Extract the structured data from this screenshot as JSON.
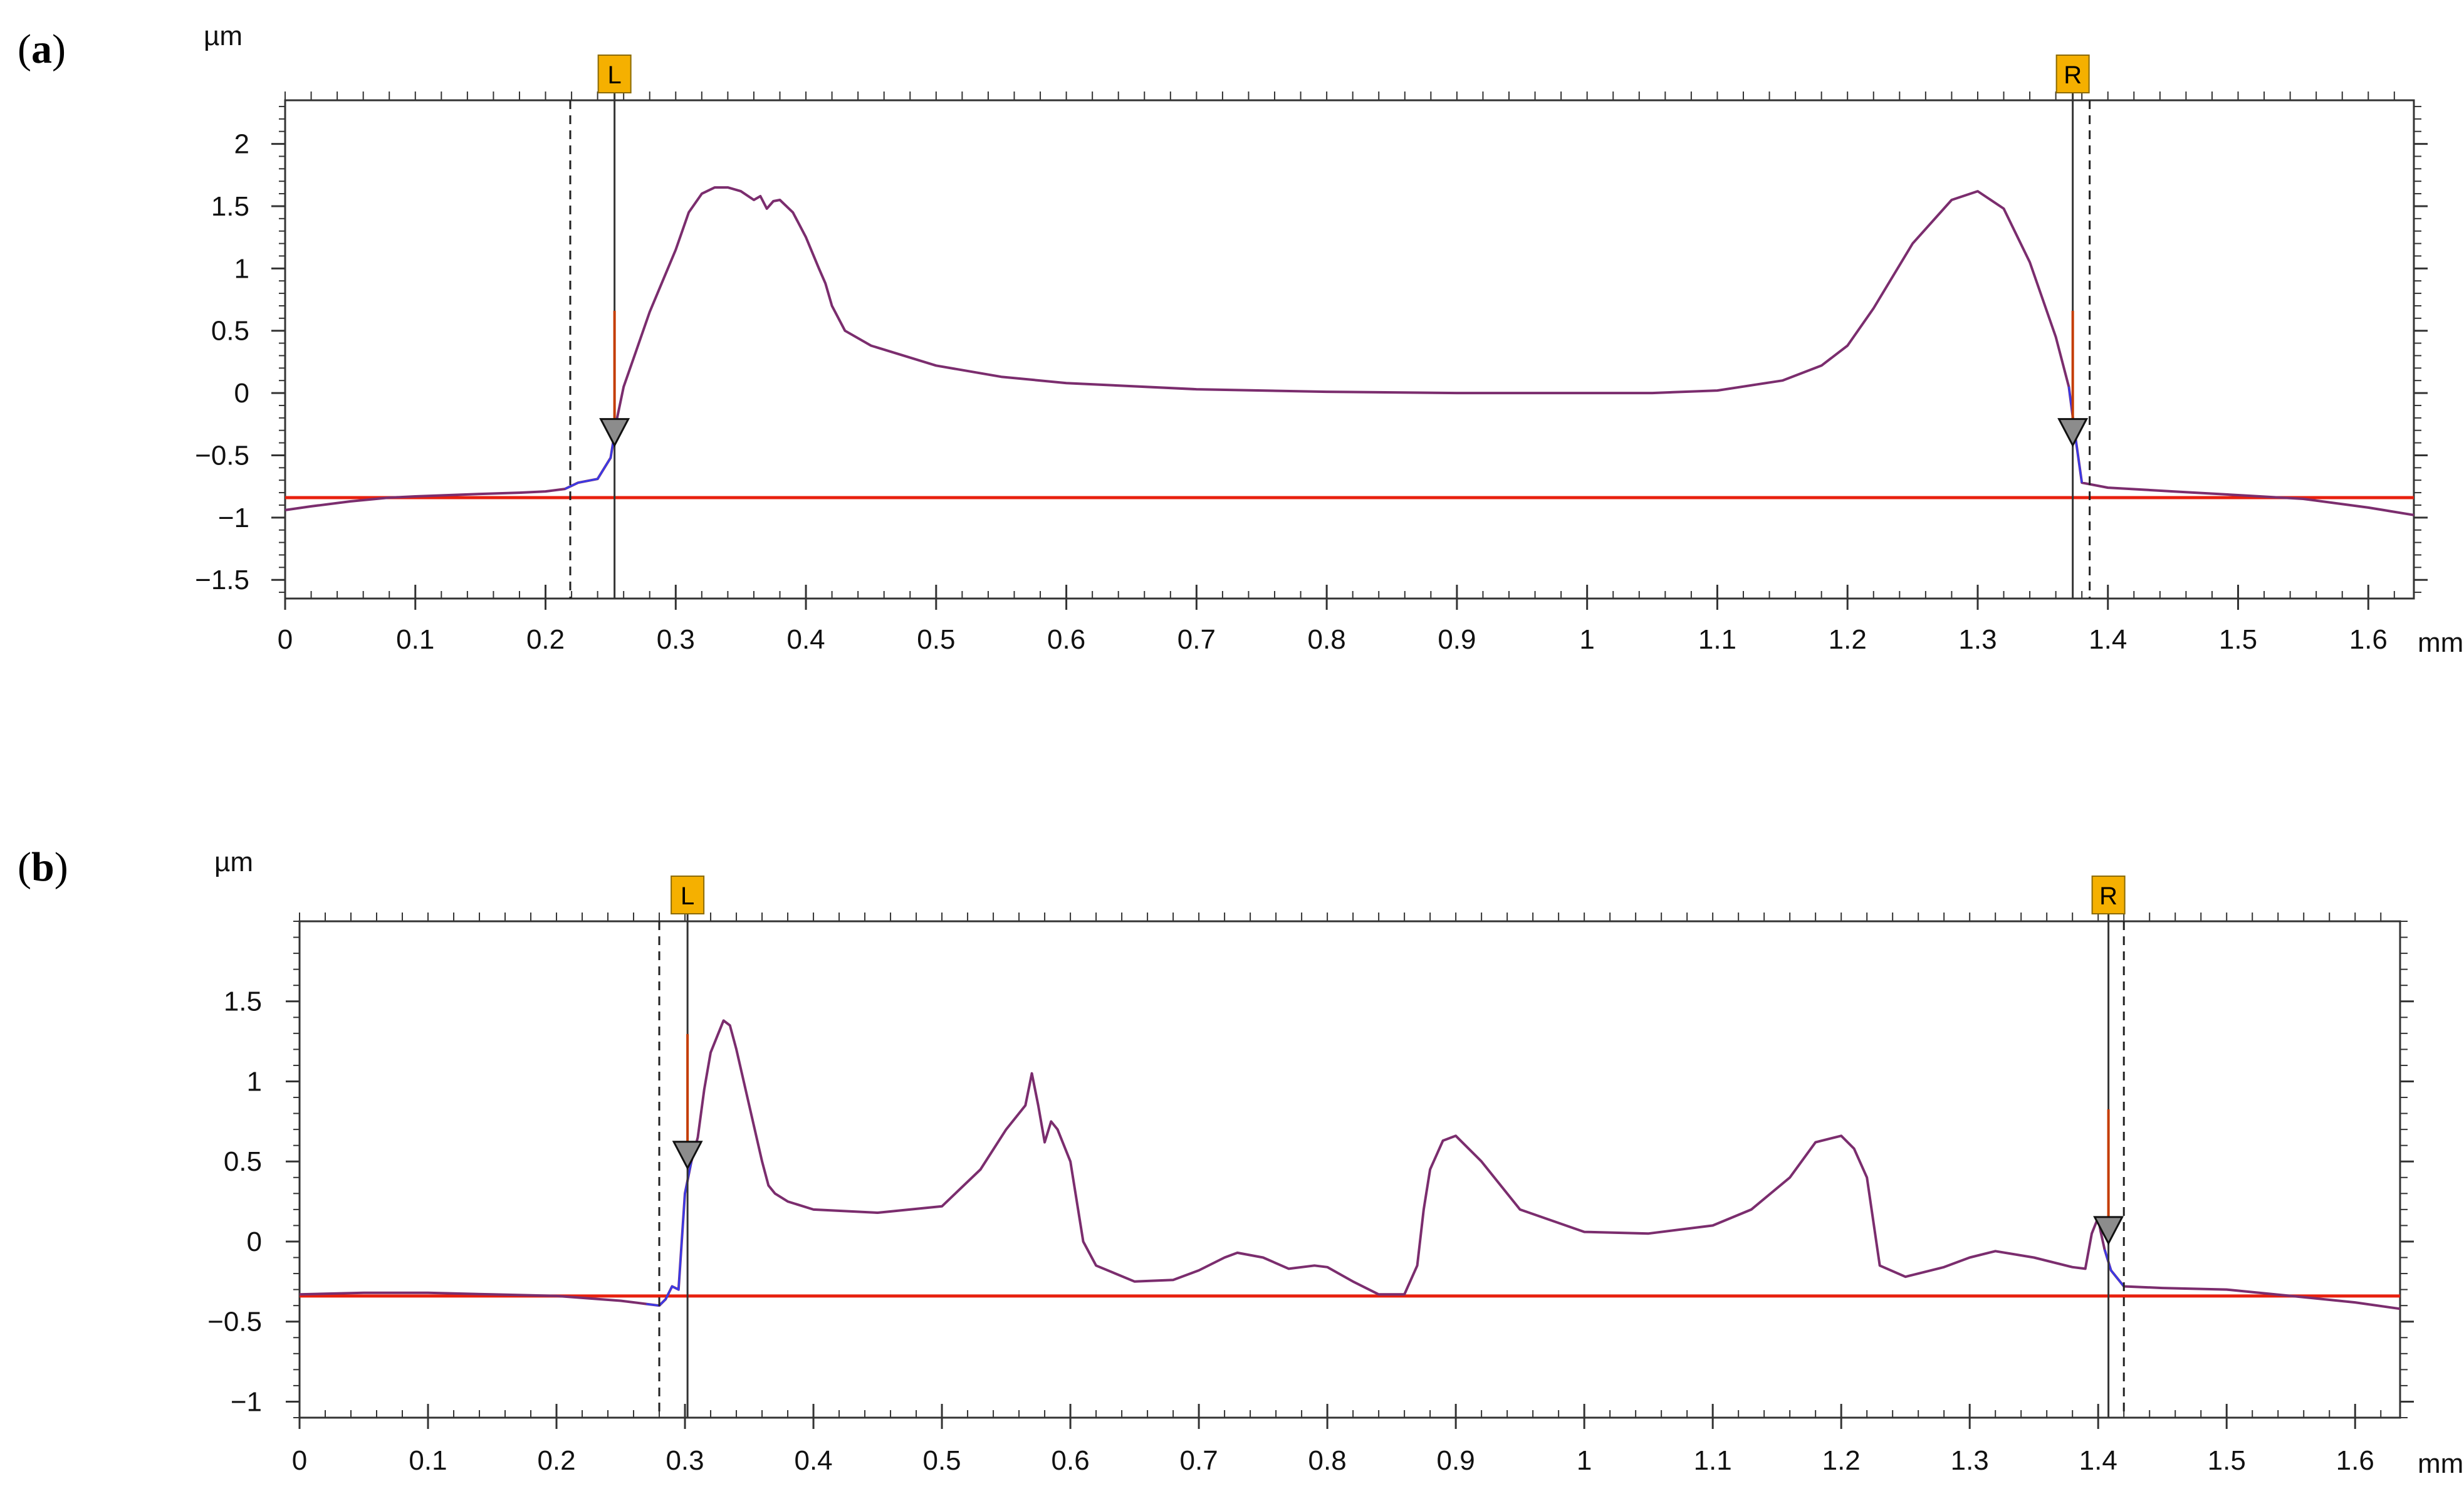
{
  "figure": {
    "panels": [
      {
        "letter": "a",
        "open": "(",
        "close": ")"
      },
      {
        "letter": "b",
        "open": "(",
        "close": ")"
      }
    ]
  },
  "chart_data": [
    {
      "type": "line",
      "panel": "a",
      "y_unit": "µm",
      "x_unit": "mm",
      "xlim": [
        0,
        1.635
      ],
      "ylim": [
        -1.65,
        2.35
      ],
      "x_ticks": [
        0,
        0.1,
        0.2,
        0.3,
        0.4,
        0.5,
        0.6,
        0.7,
        0.8,
        0.9,
        1,
        1.1,
        1.2,
        1.3,
        1.4,
        1.5,
        1.6
      ],
      "x_tick_labels": [
        "0",
        "0.1",
        "0.2",
        "0.3",
        "0.4",
        "0.5",
        "0.6",
        "0.7",
        "0.8",
        "0.9",
        "1",
        "1.1",
        "1.2",
        "1.3",
        "1.4",
        "1.5",
        "1.6"
      ],
      "y_ticks": [
        -1.5,
        -1,
        -0.5,
        0,
        0.5,
        1,
        1.5,
        2
      ],
      "y_tick_labels": [
        "−1.5",
        "−1",
        "−0.5",
        "0",
        "0.5",
        "1",
        "1.5",
        "2"
      ],
      "grid": false,
      "reference_line": {
        "y": -0.84,
        "color": "#e8200e"
      },
      "markers": [
        {
          "label": "L",
          "x": 0.253,
          "dashed_x": 0.219,
          "triangle_y": -0.38
        },
        {
          "label": "R",
          "x": 1.373,
          "dashed_x": 1.386,
          "triangle_y": -0.38
        }
      ],
      "colors": {
        "profile": "#7b2d6e",
        "edge_profile": "#3a3ae8",
        "reference": "#e8200e",
        "marker_box": "#f5b000",
        "cursor_red": "#c43c00"
      },
      "series": [
        {
          "role": "profile",
          "x": [
            0,
            0.02,
            0.05,
            0.08,
            0.1,
            0.15,
            0.18,
            0.2,
            0.215,
            0.225,
            0.24,
            0.25,
            0.255,
            0.26,
            0.27,
            0.28,
            0.29,
            0.3,
            0.31,
            0.32,
            0.33,
            0.34,
            0.35,
            0.36,
            0.365,
            0.37,
            0.375,
            0.38,
            0.39,
            0.4,
            0.41,
            0.415,
            0.42,
            0.43,
            0.45,
            0.5,
            0.55,
            0.6,
            0.7,
            0.8,
            0.9,
            1,
            1.05,
            1.1,
            1.15,
            1.18,
            1.2,
            1.22,
            1.25,
            1.28,
            1.3,
            1.32,
            1.34,
            1.36,
            1.37,
            1.375,
            1.38,
            1.4,
            1.45,
            1.5,
            1.55,
            1.6,
            1.635
          ],
          "y": [
            -0.94,
            -0.91,
            -0.87,
            -0.84,
            -0.83,
            -0.81,
            -0.8,
            -0.79,
            -0.77,
            -0.72,
            -0.69,
            -0.52,
            -0.2,
            0.05,
            0.35,
            0.65,
            0.9,
            1.15,
            1.45,
            1.6,
            1.65,
            1.65,
            1.62,
            1.55,
            1.58,
            1.48,
            1.54,
            1.55,
            1.45,
            1.25,
            1.0,
            0.88,
            0.7,
            0.5,
            0.38,
            0.22,
            0.13,
            0.08,
            0.03,
            0.01,
            0.0,
            0.0,
            0.0,
            0.02,
            0.1,
            0.22,
            0.38,
            0.68,
            1.2,
            1.55,
            1.62,
            1.48,
            1.05,
            0.45,
            0.05,
            -0.35,
            -0.72,
            -0.76,
            -0.79,
            -0.82,
            -0.85,
            -0.92,
            -0.98
          ]
        }
      ]
    },
    {
      "type": "line",
      "panel": "b",
      "y_unit": "µm",
      "x_unit": "mm",
      "xlim": [
        0,
        1.635
      ],
      "ylim": [
        -1.1,
        2.0
      ],
      "x_ticks": [
        0,
        0.1,
        0.2,
        0.3,
        0.4,
        0.5,
        0.6,
        0.7,
        0.8,
        0.9,
        1,
        1.1,
        1.2,
        1.3,
        1.4,
        1.5,
        1.6
      ],
      "x_tick_labels": [
        "0",
        "0.1",
        "0.2",
        "0.3",
        "0.4",
        "0.5",
        "0.6",
        "0.7",
        "0.8",
        "0.9",
        "1",
        "1.1",
        "1.2",
        "1.3",
        "1.4",
        "1.5",
        "1.6"
      ],
      "y_ticks": [
        -1,
        -0.5,
        0,
        0.5,
        1,
        1.5
      ],
      "y_tick_labels": [
        "−1",
        "−0.5",
        "0",
        "0.5",
        "1",
        "1.5"
      ],
      "grid": false,
      "reference_line": {
        "y": -0.34,
        "color": "#e8200e"
      },
      "markers": [
        {
          "label": "L",
          "x": 0.302,
          "dashed_x": 0.28,
          "triangle_y": 0.49
        },
        {
          "label": "R",
          "x": 1.408,
          "dashed_x": 1.42,
          "triangle_y": 0.02
        }
      ],
      "colors": {
        "profile": "#7b2d6e",
        "edge_profile": "#3a3ae8",
        "reference": "#e8200e",
        "marker_box": "#f5b000",
        "cursor_red": "#c43c00"
      },
      "series": [
        {
          "role": "profile",
          "x": [
            0,
            0.05,
            0.1,
            0.15,
            0.2,
            0.25,
            0.27,
            0.28,
            0.285,
            0.29,
            0.295,
            0.3,
            0.305,
            0.31,
            0.315,
            0.32,
            0.325,
            0.33,
            0.335,
            0.34,
            0.35,
            0.36,
            0.365,
            0.37,
            0.38,
            0.4,
            0.45,
            0.5,
            0.53,
            0.55,
            0.565,
            0.57,
            0.575,
            0.58,
            0.585,
            0.59,
            0.6,
            0.61,
            0.62,
            0.65,
            0.68,
            0.7,
            0.72,
            0.73,
            0.75,
            0.77,
            0.79,
            0.8,
            0.82,
            0.84,
            0.86,
            0.87,
            0.875,
            0.88,
            0.89,
            0.9,
            0.92,
            0.95,
            1,
            1.05,
            1.1,
            1.13,
            1.16,
            1.18,
            1.2,
            1.21,
            1.22,
            1.23,
            1.25,
            1.28,
            1.3,
            1.32,
            1.35,
            1.38,
            1.39,
            1.395,
            1.4,
            1.402,
            1.405,
            1.41,
            1.42,
            1.45,
            1.5,
            1.55,
            1.6,
            1.635
          ],
          "y": [
            -0.33,
            -0.32,
            -0.32,
            -0.33,
            -0.34,
            -0.37,
            -0.39,
            -0.4,
            -0.36,
            -0.28,
            -0.3,
            0.3,
            0.5,
            0.65,
            0.95,
            1.18,
            1.28,
            1.38,
            1.35,
            1.2,
            0.85,
            0.5,
            0.35,
            0.3,
            0.25,
            0.2,
            0.18,
            0.22,
            0.45,
            0.7,
            0.85,
            1.05,
            0.85,
            0.62,
            0.75,
            0.7,
            0.5,
            0.0,
            -0.15,
            -0.25,
            -0.24,
            -0.18,
            -0.1,
            -0.07,
            -0.1,
            -0.17,
            -0.15,
            -0.16,
            -0.25,
            -0.33,
            -0.33,
            -0.15,
            0.2,
            0.45,
            0.63,
            0.66,
            0.5,
            0.2,
            0.06,
            0.05,
            0.1,
            0.2,
            0.4,
            0.62,
            0.66,
            0.58,
            0.4,
            -0.15,
            -0.22,
            -0.16,
            -0.1,
            -0.06,
            -0.1,
            -0.16,
            -0.17,
            0.05,
            0.15,
            0.06,
            -0.05,
            -0.18,
            -0.28,
            -0.29,
            -0.3,
            -0.34,
            -0.38,
            -0.42
          ]
        }
      ]
    }
  ]
}
